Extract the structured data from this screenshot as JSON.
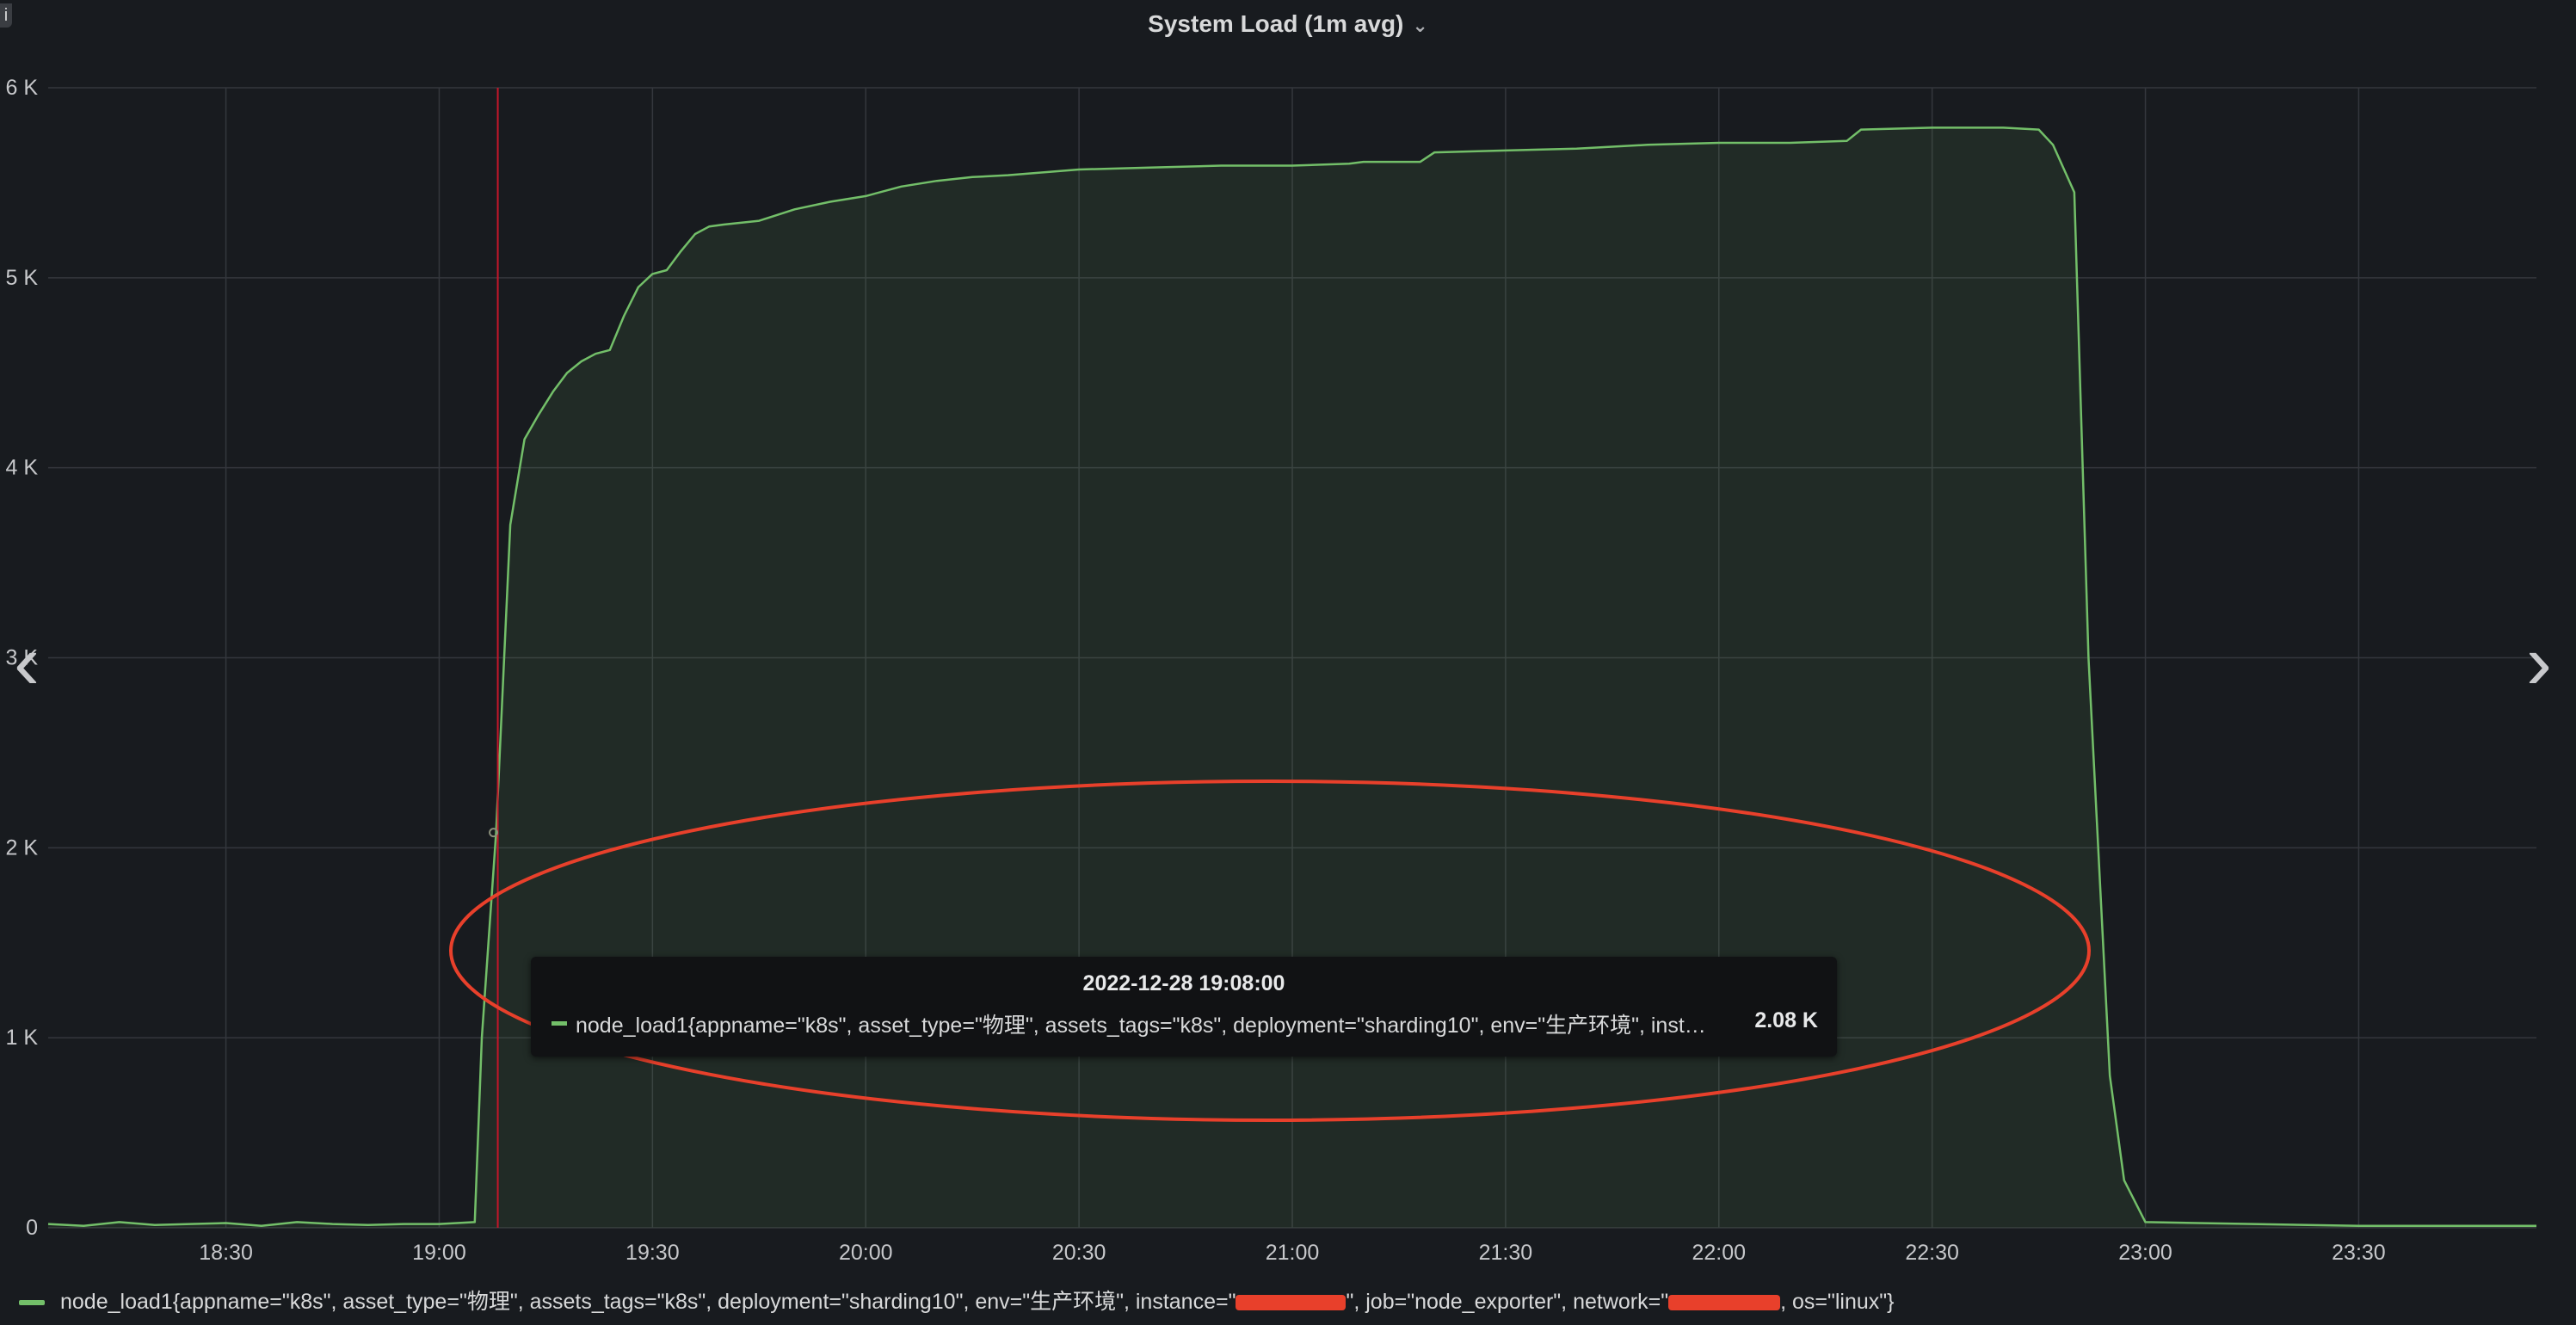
{
  "panel": {
    "title": "System Load (1m avg)",
    "chevron_icon": "chevron-down-icon",
    "info_icon": "i",
    "nav": {
      "prev_icon": "chevron-left-icon",
      "next_icon": "chevron-right-icon",
      "prev_glyph": "‹",
      "next_glyph": "›"
    }
  },
  "tooltip": {
    "time": "2022-12-28 19:08:00",
    "series": "node_load1{appname=\"k8s\", asset_type=\"物理\", assets_tags=\"k8s\", deployment=\"sharding10\", env=\"生产环境\", inst…",
    "value": "2.08 K"
  },
  "legend": {
    "text_before": "node_load1{appname=\"k8s\", asset_type=\"物理\", assets_tags=\"k8s\", deployment=\"sharding10\", env=\"生产环境\", instance=\"",
    "text_middle": "\", job=\"node_exporter\", network=\"",
    "text_after": ", os=\"linux\"}"
  },
  "annotation": {
    "color": "#e8402b",
    "shape": "ellipse-highlight"
  },
  "chart_data": {
    "type": "area",
    "series": [
      {
        "color": "#73bf69",
        "x": [
          "18:05",
          "18:10",
          "18:15",
          "18:20",
          "18:25",
          "18:30",
          "18:35",
          "18:40",
          "18:45",
          "18:50",
          "18:55",
          "19:00",
          "19:05",
          "19:06",
          "19:08",
          "19:10",
          "19:12",
          "19:14",
          "19:16",
          "19:18",
          "19:20",
          "19:22",
          "19:24",
          "19:26",
          "19:28",
          "19:30",
          "19:32",
          "19:34",
          "19:36",
          "19:38",
          "19:40",
          "19:45",
          "19:50",
          "19:55",
          "20:00",
          "20:05",
          "20:10",
          "20:15",
          "20:20",
          "20:30",
          "20:40",
          "20:50",
          "21:00",
          "21:08",
          "21:10",
          "21:18",
          "21:20",
          "21:30",
          "21:40",
          "21:50",
          "22:00",
          "22:10",
          "22:18",
          "22:20",
          "22:30",
          "22:40",
          "22:45",
          "22:47",
          "22:50",
          "22:52",
          "22:55",
          "22:57",
          "23:00",
          "23:30",
          "23:55"
        ],
        "values": [
          20,
          10,
          30,
          15,
          20,
          25,
          10,
          30,
          20,
          15,
          20,
          20,
          30,
          1000,
          2080,
          3700,
          4150,
          4280,
          4400,
          4500,
          4560,
          4600,
          4620,
          4800,
          4950,
          5020,
          5040,
          5140,
          5230,
          5270,
          5280,
          5300,
          5360,
          5400,
          5430,
          5480,
          5510,
          5530,
          5540,
          5570,
          5580,
          5590,
          5590,
          5600,
          5610,
          5610,
          5660,
          5670,
          5680,
          5700,
          5710,
          5710,
          5720,
          5780,
          5790,
          5790,
          5780,
          5700,
          5450,
          3000,
          800,
          250,
          30,
          10,
          10
        ]
      }
    ],
    "x_range": [
      "18:05",
      "23:55"
    ],
    "x_date": "2022-12-28",
    "xticks": [
      "18:30",
      "19:00",
      "19:30",
      "20:00",
      "20:30",
      "21:00",
      "21:30",
      "22:00",
      "22:30",
      "23:00",
      "23:30"
    ],
    "yticks": [
      "0",
      "1 K",
      "2 K",
      "3 K",
      "4 K",
      "5 K",
      "6 K"
    ],
    "ylim": [
      0,
      6000
    ],
    "grid": true,
    "hover_time": "19:08",
    "hover_value": 2080,
    "legend_position": "bottom-left"
  }
}
